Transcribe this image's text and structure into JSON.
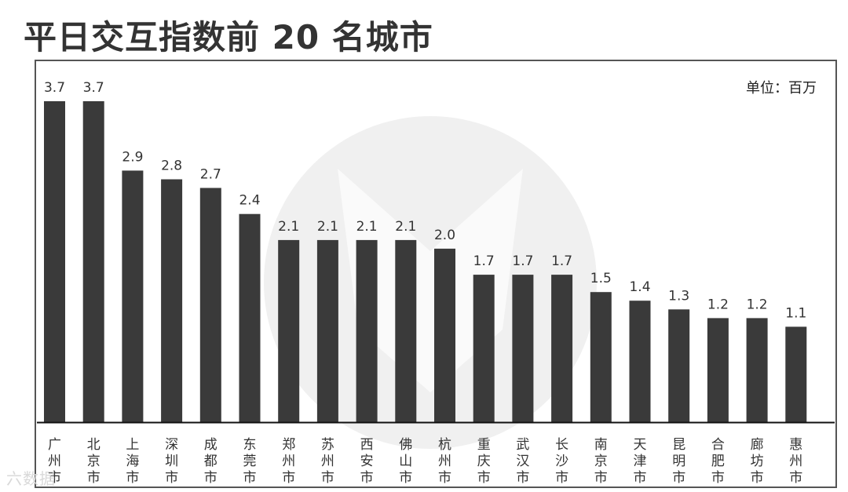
{
  "title": "平日交互指数前 20 名城市",
  "unit_label": "单位：百万",
  "watermark": "六数据",
  "colors": {
    "bar": "#3a3a3a",
    "axis": "#111111",
    "label": "#333333",
    "frame": "#555555",
    "logo": "#f0f0f0"
  },
  "chart_data": {
    "type": "bar",
    "title": "平日交互指数前 20 名城市",
    "unit": "单位：百万",
    "categories": [
      "广州市",
      "北京市",
      "上海市",
      "深圳市",
      "成都市",
      "东莞市",
      "郑州市",
      "苏州市",
      "西安市",
      "佛山市",
      "杭州市",
      "重庆市",
      "武汉市",
      "长沙市",
      "南京市",
      "天津市",
      "昆明市",
      "合肥市",
      "廊坊市",
      "惠州市"
    ],
    "values": [
      3.7,
      3.7,
      2.9,
      2.8,
      2.7,
      2.4,
      2.1,
      2.1,
      2.1,
      2.1,
      2.0,
      1.7,
      1.7,
      1.7,
      1.5,
      1.4,
      1.3,
      1.2,
      1.2,
      1.1
    ],
    "value_labels": [
      "3.7",
      "3.7",
      "2.9",
      "2.8",
      "2.7",
      "2.4",
      "2.1",
      "2.1",
      "2.1",
      "2.1",
      "2.0",
      "1.7",
      "1.7",
      "1.7",
      "1.5",
      "1.4",
      "1.3",
      "1.2",
      "1.2",
      "1.1"
    ],
    "ylim": [
      0,
      3.7
    ],
    "grid": false,
    "legend": "none"
  }
}
